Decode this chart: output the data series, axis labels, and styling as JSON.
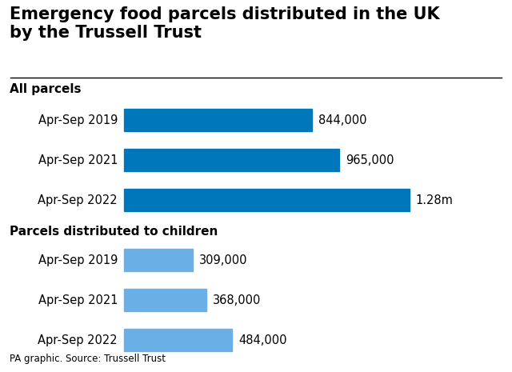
{
  "title": "Emergency food parcels distributed in the UK\nby the Trussell Trust",
  "title_fontsize": 15,
  "source_text": "PA graphic. Source: Trussell Trust",
  "section1_label": "All parcels",
  "section2_label": "Parcels distributed to children",
  "categories_all": [
    "Apr-Sep 2019",
    "Apr-Sep 2021",
    "Apr-Sep 2022"
  ],
  "values_all": [
    844000,
    965000,
    1280000
  ],
  "labels_all": [
    "844,000",
    "965,000",
    "1.28m"
  ],
  "color_all": "#0077BB",
  "categories_children": [
    "Apr-Sep 2019",
    "Apr-Sep 2021",
    "Apr-Sep 2022"
  ],
  "values_children": [
    309000,
    368000,
    484000
  ],
  "labels_children": [
    "309,000",
    "368,000",
    "484,000"
  ],
  "color_children": "#6AAFE6",
  "max_value": 1400000,
  "background_color": "#ffffff",
  "label_fontsize": 10.5,
  "category_fontsize": 10.5,
  "section_fontsize": 11,
  "source_fontsize": 8.5
}
